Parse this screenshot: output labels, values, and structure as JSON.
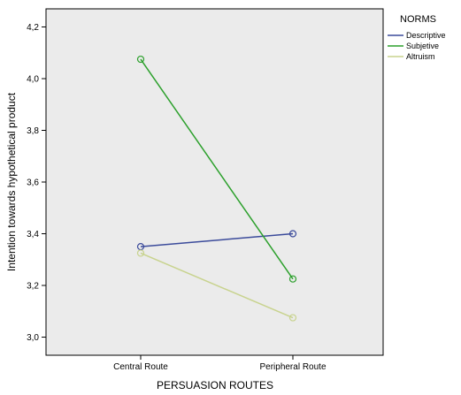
{
  "chart_data": {
    "type": "line",
    "title": "",
    "xlabel": "PERSUASION ROUTES",
    "ylabel": "Intention towards hypothetical product",
    "categories": [
      "Central Route",
      "Peripheral Route"
    ],
    "ylim": [
      2.93,
      4.27
    ],
    "yticks": [
      3.0,
      3.2,
      3.4,
      3.6,
      3.8,
      4.0,
      4.2
    ],
    "ytick_labels": [
      "3,0",
      "3,2",
      "3,4",
      "3,6",
      "3,8",
      "4,0",
      "4,2"
    ],
    "grid": false,
    "legend": {
      "title": "NORMS",
      "position": "top-right, outside plot"
    },
    "series": [
      {
        "name": "Descriptive",
        "values": [
          3.35,
          3.4
        ],
        "color": "#3b4b9b"
      },
      {
        "name": "Subjetive",
        "values": [
          4.075,
          3.225
        ],
        "color": "#2ca02c"
      },
      {
        "name": "Altruism",
        "values": [
          3.325,
          3.075
        ],
        "color": "#c8d38e"
      }
    ],
    "plot_background": "#ebebeb"
  }
}
